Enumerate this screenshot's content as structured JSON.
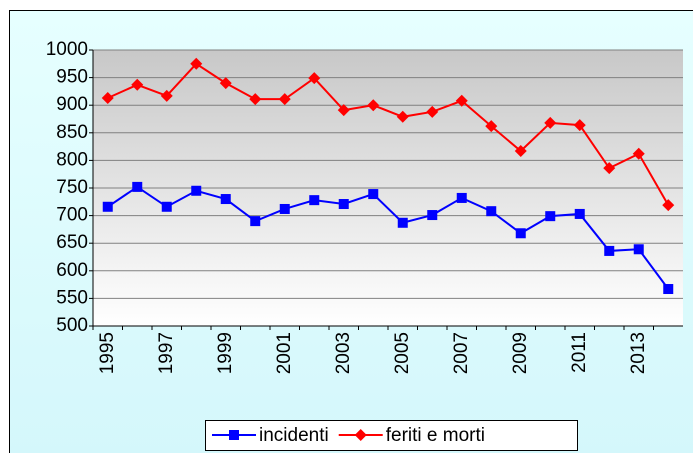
{
  "chart_data": {
    "type": "line",
    "categories": [
      "1995",
      null,
      "1997",
      null,
      "1999",
      null,
      "2001",
      null,
      "2003",
      null,
      "2005",
      null,
      "2007",
      null,
      "2009",
      null,
      "2011",
      null,
      "2013",
      null
    ],
    "series": [
      {
        "name": "incidenti",
        "color": "#0000ff",
        "marker": "square",
        "values": [
          716,
          752,
          716,
          745,
          730,
          690,
          712,
          728,
          721,
          739,
          687,
          701,
          732,
          708,
          668,
          699,
          703,
          636,
          639,
          567
        ]
      },
      {
        "name": "feriti e morti",
        "color": "#ff0000",
        "marker": "diamond",
        "values": [
          913,
          937,
          917,
          975,
          940,
          911,
          911,
          949,
          891,
          900,
          879,
          888,
          908,
          862,
          817,
          868,
          864,
          786,
          812,
          719
        ]
      }
    ],
    "ylim": [
      500,
      1000
    ],
    "yticks": [
      500,
      550,
      600,
      650,
      700,
      750,
      800,
      850,
      900,
      950,
      1000
    ],
    "grid": true,
    "legend": "bottom"
  }
}
